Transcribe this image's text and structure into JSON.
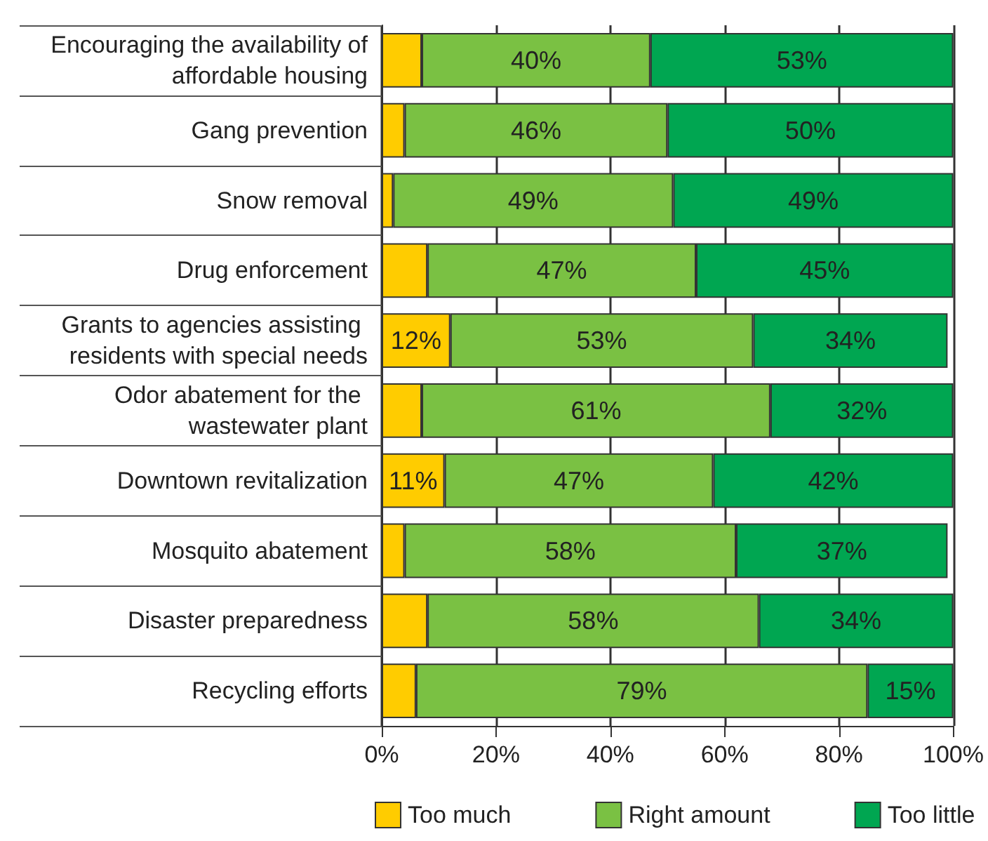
{
  "chart_data": {
    "type": "bar",
    "orientation": "horizontal",
    "stacked": true,
    "categories": [
      "Encouraging the availability of affordable housing",
      "Gang prevention",
      "Snow removal",
      "Drug enforcement",
      "Grants to agencies assisting residents with special needs",
      "Odor abatement for the wastewater plant",
      "Downtown revitalization",
      "Mosquito abatement",
      "Disaster preparedness",
      "Recycling efforts"
    ],
    "series": [
      {
        "name": "Too much",
        "color": "#ffcc00",
        "values": [
          7,
          4,
          2,
          8,
          12,
          7,
          11,
          4,
          8,
          6
        ],
        "value_labels": [
          null,
          null,
          null,
          null,
          "12%",
          null,
          "11%",
          null,
          null,
          null
        ]
      },
      {
        "name": "Right amount",
        "color": "#7ac143",
        "values": [
          40,
          46,
          49,
          47,
          53,
          61,
          47,
          58,
          58,
          79
        ],
        "value_labels": [
          "40%",
          "46%",
          "49%",
          "47%",
          "53%",
          "61%",
          "47%",
          "58%",
          "58%",
          "79%"
        ]
      },
      {
        "name": "Too little",
        "color": "#00a651",
        "values": [
          53,
          50,
          49,
          45,
          34,
          32,
          42,
          37,
          34,
          15
        ],
        "value_labels": [
          "53%",
          "50%",
          "49%",
          "45%",
          "34%",
          "32%",
          "42%",
          "37%",
          "34%",
          "15%"
        ]
      }
    ],
    "xlim": [
      0,
      100
    ],
    "xticks": [
      {
        "value": 0,
        "label": "0%"
      },
      {
        "value": 20,
        "label": "20%"
      },
      {
        "value": 40,
        "label": "40%"
      },
      {
        "value": 60,
        "label": "60%"
      },
      {
        "value": 80,
        "label": "80%"
      },
      {
        "value": 100,
        "label": "100%"
      }
    ],
    "grid": "x",
    "legend": "bottom"
  }
}
